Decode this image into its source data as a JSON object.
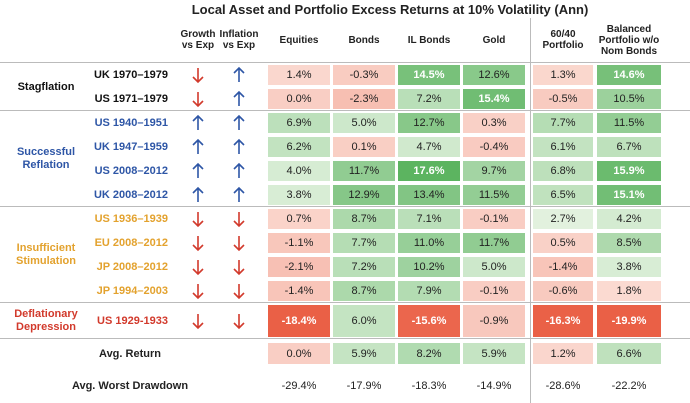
{
  "title": "Local Asset and Portfolio Excess Returns at 10% Volatility (Ann)",
  "headers": [
    "Growth vs Exp",
    "Inflation vs Exp",
    "Equities",
    "Bonds",
    "IL Bonds",
    "Gold",
    "60/40 Portfolio",
    "Balanced Portfolio w/o Nom Bonds"
  ],
  "groups": [
    {
      "label": "Stagflation",
      "color": "#111111",
      "rows": [
        {
          "period": "UK 1970–1979",
          "growth": "down",
          "inflation": "up",
          "values": [
            "1.4%",
            "-0.3%",
            "14.5%",
            "12.6%",
            "1.3%",
            "14.6%"
          ]
        },
        {
          "period": "US 1971–1979",
          "growth": "down",
          "inflation": "up",
          "values": [
            "0.0%",
            "-2.3%",
            "7.2%",
            "15.4%",
            "-0.5%",
            "10.5%"
          ]
        }
      ]
    },
    {
      "label": "Successful Reflation",
      "color": "#2e56a6",
      "rows": [
        {
          "period": "US 1940–1951",
          "growth": "up",
          "inflation": "up",
          "values": [
            "6.9%",
            "5.0%",
            "12.7%",
            "0.3%",
            "7.7%",
            "11.5%"
          ]
        },
        {
          "period": "UK 1947–1959",
          "growth": "up",
          "inflation": "up",
          "values": [
            "6.2%",
            "0.1%",
            "4.7%",
            "-0.4%",
            "6.1%",
            "6.7%"
          ]
        },
        {
          "period": "US 2008–2012",
          "growth": "up",
          "inflation": "up",
          "values": [
            "4.0%",
            "11.7%",
            "17.6%",
            "9.7%",
            "6.8%",
            "15.9%"
          ]
        },
        {
          "period": "UK 2008–2012",
          "growth": "up",
          "inflation": "up",
          "values": [
            "3.8%",
            "12.9%",
            "13.4%",
            "11.5%",
            "6.5%",
            "15.1%"
          ]
        }
      ]
    },
    {
      "label": "Insufficient Stimulation",
      "color": "#e3a22e",
      "rows": [
        {
          "period": "US 1936–1939",
          "growth": "down",
          "inflation": "down",
          "values": [
            "0.7%",
            "8.7%",
            "7.1%",
            "-0.1%",
            "2.7%",
            "4.2%"
          ]
        },
        {
          "period": "EU 2008–2012",
          "growth": "down",
          "inflation": "down",
          "values": [
            "-1.1%",
            "7.7%",
            "11.0%",
            "11.7%",
            "0.5%",
            "8.5%"
          ]
        },
        {
          "period": "JP 2008–2012",
          "growth": "down",
          "inflation": "down",
          "values": [
            "-2.1%",
            "7.2%",
            "10.2%",
            "5.0%",
            "-1.4%",
            "3.8%"
          ]
        },
        {
          "period": "JP 1994–2003",
          "growth": "down",
          "inflation": "down",
          "values": [
            "-1.4%",
            "8.7%",
            "7.9%",
            "-0.1%",
            "-0.6%",
            "1.8%"
          ]
        }
      ]
    },
    {
      "label": "Deflationary Depression",
      "color": "#d23a2c",
      "rows": [
        {
          "period": "US 1929-1933",
          "growth": "down",
          "inflation": "down",
          "values": [
            "-18.4%",
            "6.0%",
            "-15.6%",
            "-0.9%",
            "-16.3%",
            "-19.9%"
          ]
        }
      ]
    }
  ],
  "averages": [
    {
      "label": "Avg. Return",
      "shaded": true,
      "values": [
        "0.0%",
        "5.9%",
        "8.2%",
        "5.9%",
        "1.2%",
        "6.6%"
      ]
    },
    {
      "label": "Avg. Worst Drawdown",
      "shaded": false,
      "values": [
        "-29.4%",
        "-17.9%",
        "-18.3%",
        "-14.9%",
        "-28.6%",
        "-22.2%"
      ]
    }
  ]
}
